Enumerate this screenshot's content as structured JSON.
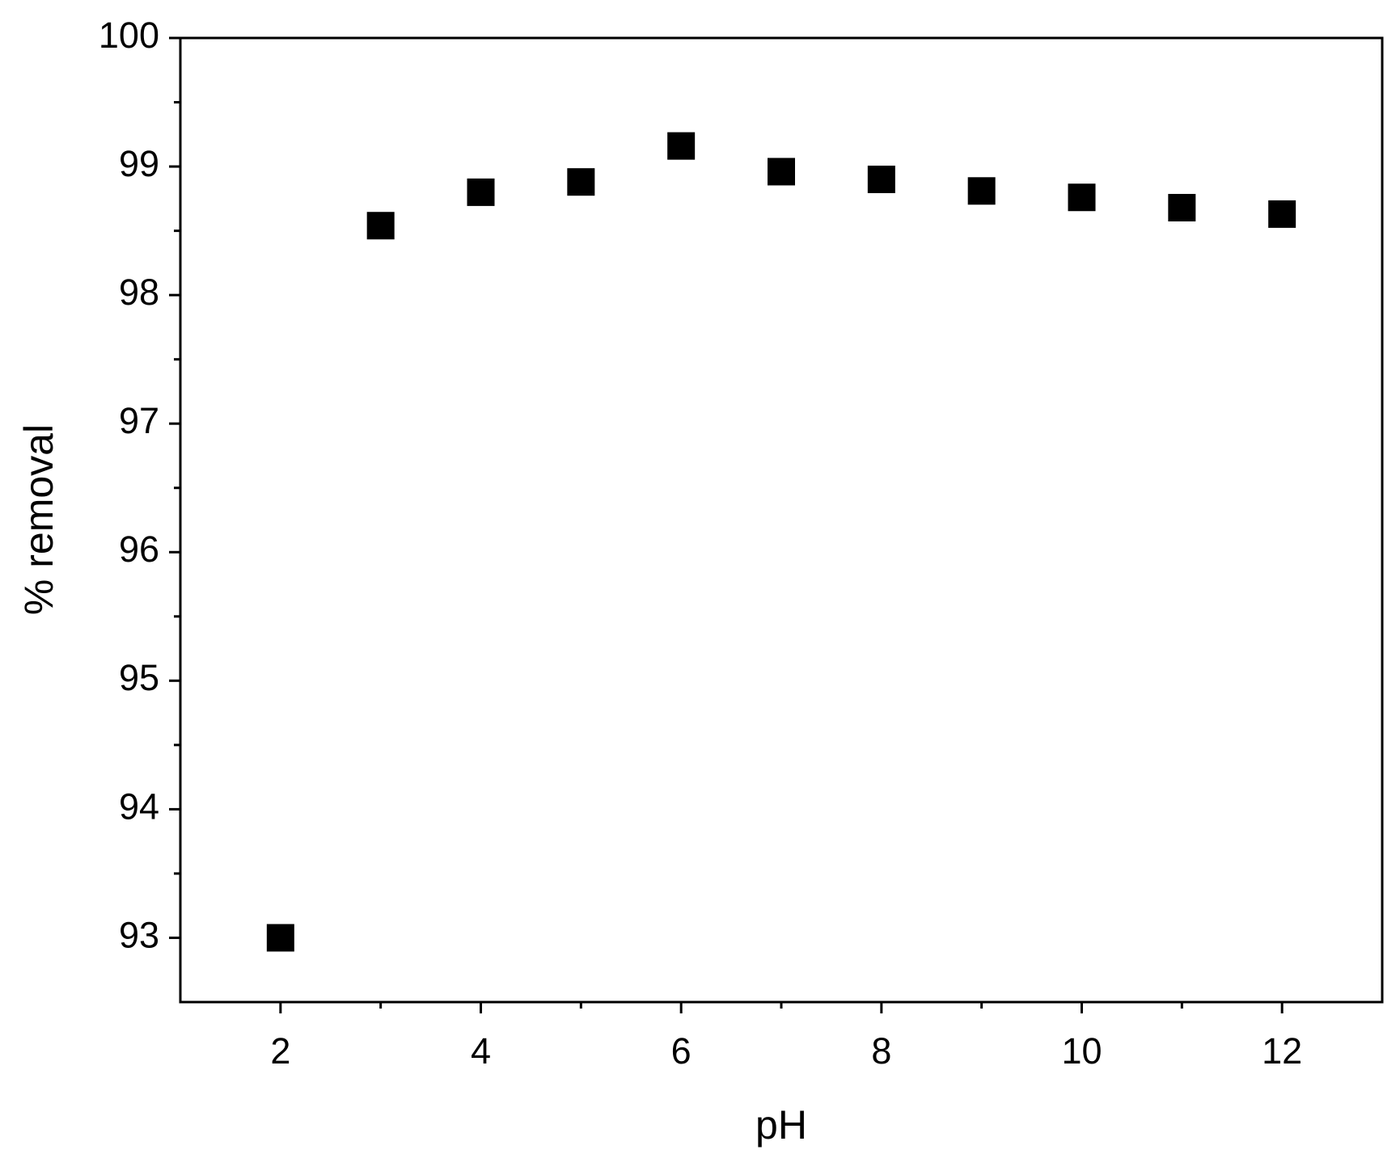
{
  "chart_data": {
    "type": "scatter",
    "x_label": "pH",
    "y_label": "% removal",
    "x": [
      2,
      3,
      4,
      5,
      6,
      7,
      8,
      9,
      10,
      11,
      12
    ],
    "values": [
      93.0,
      98.54,
      98.8,
      98.88,
      99.16,
      98.96,
      98.9,
      98.81,
      98.76,
      98.68,
      98.63
    ],
    "color": "#000000",
    "xlim": [
      1,
      13
    ],
    "xticks": [
      2,
      4,
      6,
      8,
      10,
      12
    ],
    "ylim": [
      92.5,
      100
    ],
    "yticks": [
      93,
      94,
      95,
      96,
      97,
      98,
      99,
      100
    ],
    "grid": false
  }
}
